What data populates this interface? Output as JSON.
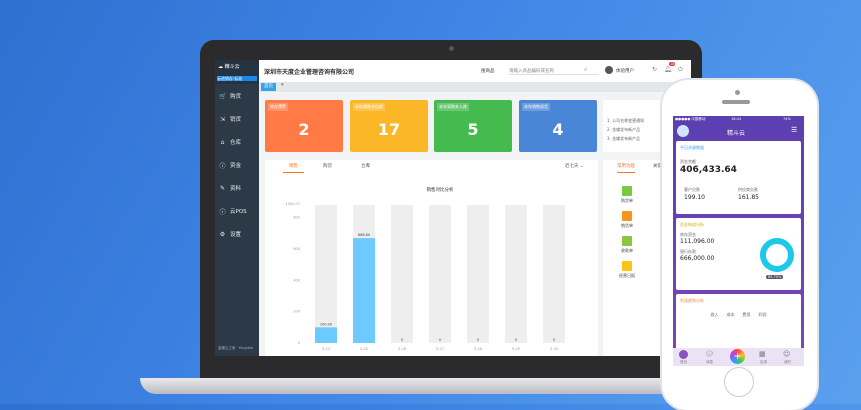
{
  "app": {
    "company": "深圳市天度企业管理咨询有限公司",
    "logo": "精斗云",
    "logo_sub": "云进销存·标准",
    "search_scope": "搜商品",
    "search_placeholder": "请输入商品编码或名称",
    "user": "体验用户",
    "notif_count": "18",
    "home_tab": "首页",
    "footer": "金蝶云之家 · Kingdee"
  },
  "sidebar": {
    "items": [
      {
        "label": "购货",
        "icon": "cart-icon"
      },
      {
        "label": "销货",
        "icon": "sales-icon"
      },
      {
        "label": "仓库",
        "icon": "warehouse-icon"
      },
      {
        "label": "资金",
        "icon": "money-icon"
      },
      {
        "label": "资料",
        "icon": "pen-icon"
      },
      {
        "label": "云POS",
        "icon": "pos-icon"
      },
      {
        "label": "设置",
        "icon": "gear-icon"
      }
    ]
  },
  "cards": [
    {
      "label": "库存预警",
      "value": "2",
      "color": "#ff7a45"
    },
    {
      "label": "本年销售未出库",
      "value": "17",
      "color": "#fbb727"
    },
    {
      "label": "本年采购未入库",
      "value": "5",
      "color": "#45bb4f"
    },
    {
      "label": "本年销售退货",
      "value": "4",
      "color": "#4a86d8"
    }
  ],
  "notice": [
    "1. 公司名称变更通知",
    "2. 金蝶发布新产品",
    "3. 金蝶发布新产品"
  ],
  "chart_tabs": [
    "销售",
    "购货",
    "仓库"
  ],
  "period": "近七天",
  "quick": {
    "tabs": [
      "常用功能",
      "关键"
    ],
    "items": [
      "购货单",
      "销货单",
      "收款单",
      "经营日报"
    ]
  },
  "chart_data": {
    "type": "bar",
    "title": "销售对比分析",
    "categories": [
      "5-24",
      "5-25",
      "5-26",
      "5-27",
      "5-28",
      "5-29",
      "5-30"
    ],
    "values": [
      100,
      668.8,
      0,
      0,
      0,
      0,
      0
    ],
    "labels": [
      "100.00",
      "668.80",
      "0",
      "0",
      "0",
      "0",
      "0"
    ],
    "yticks": [
      "0",
      "200",
      "400",
      "600",
      "800"
    ],
    "ymax_label": "1000.07",
    "ylim": [
      0,
      880
    ],
    "color": "#6ccaff"
  },
  "phone": {
    "status_left": "●●●●● 中国移动",
    "time": "16:44",
    "battery": "74%",
    "title": "精斗云",
    "card1_title": "今日关键数据",
    "fund_label": "资金余额",
    "fund": "406,433.64",
    "recv_label": "客户欠款",
    "recv": "199.10",
    "pay_label": "供应商欠款",
    "pay": "161.85",
    "card2_title": "资金构成分析",
    "c2a_label": "库存资金",
    "c2a": "111,096.00",
    "c2b_label": "银行存款",
    "c2b": "666,000.00",
    "donut_pct": "85.70%",
    "card3_title": "利润趋势分析",
    "legend": [
      "收入",
      "成本",
      "费用",
      "利润"
    ],
    "nav": [
      "首页",
      "消息",
      "",
      "应用",
      "我的"
    ]
  }
}
